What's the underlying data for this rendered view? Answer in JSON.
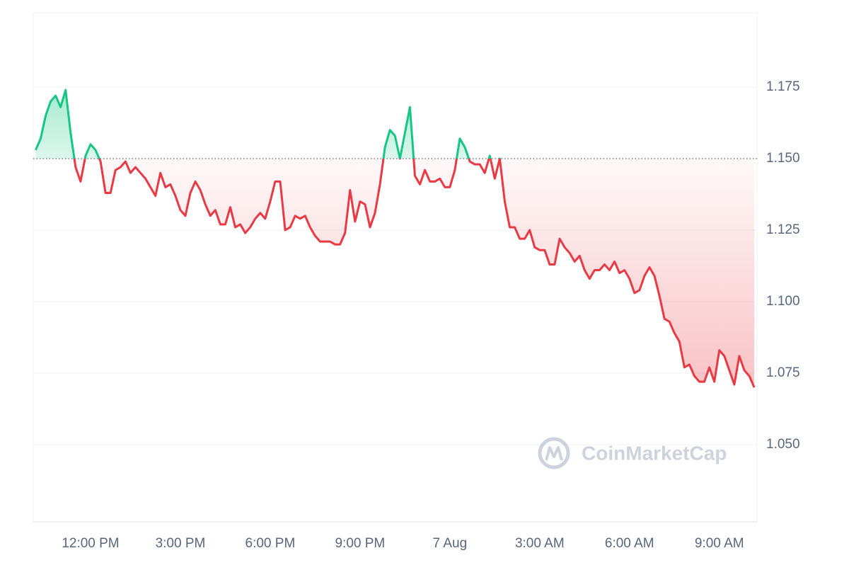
{
  "chart_data": {
    "type": "line",
    "watermark": "CoinMarketCap",
    "categories": [
      null,
      null,
      null,
      null,
      null,
      null,
      null,
      null,
      null,
      null,
      null,
      "12:00 PM",
      null,
      null,
      null,
      null,
      null,
      null,
      null,
      null,
      null,
      null,
      null,
      null,
      null,
      null,
      null,
      null,
      null,
      "3:00 PM",
      null,
      null,
      null,
      null,
      null,
      null,
      null,
      null,
      null,
      null,
      null,
      null,
      null,
      null,
      null,
      null,
      null,
      "6:00 PM",
      null,
      null,
      null,
      null,
      null,
      null,
      null,
      null,
      null,
      null,
      null,
      null,
      null,
      null,
      null,
      null,
      null,
      "9:00 PM",
      null,
      null,
      null,
      null,
      null,
      null,
      null,
      null,
      null,
      null,
      null,
      null,
      null,
      null,
      null,
      null,
      null,
      "7 Aug",
      null,
      null,
      null,
      null,
      null,
      null,
      null,
      null,
      null,
      null,
      null,
      null,
      null,
      null,
      null,
      null,
      null,
      "3:00 AM",
      null,
      null,
      null,
      null,
      null,
      null,
      null,
      null,
      null,
      null,
      null,
      null,
      null,
      null,
      null,
      null,
      null,
      "6:00 AM",
      null,
      null,
      null,
      null,
      null,
      null,
      null,
      null,
      null,
      null,
      null,
      null,
      null,
      null,
      null,
      null,
      null,
      "9:00 AM",
      null,
      null,
      null,
      null,
      null,
      null,
      null
    ],
    "values": [
      1.153,
      1.157,
      1.165,
      1.17,
      1.172,
      1.168,
      1.174,
      1.159,
      1.147,
      1.142,
      1.151,
      1.155,
      1.153,
      1.149,
      1.138,
      1.138,
      1.146,
      1.147,
      1.149,
      1.145,
      1.147,
      1.145,
      1.143,
      1.14,
      1.137,
      1.145,
      1.14,
      1.141,
      1.137,
      1.132,
      1.13,
      1.138,
      1.142,
      1.139,
      1.134,
      1.13,
      1.132,
      1.127,
      1.127,
      1.133,
      1.126,
      1.127,
      1.124,
      1.126,
      1.129,
      1.131,
      1.129,
      1.135,
      1.142,
      1.142,
      1.125,
      1.126,
      1.13,
      1.129,
      1.13,
      1.126,
      1.123,
      1.121,
      1.121,
      1.121,
      1.12,
      1.12,
      1.124,
      1.139,
      1.128,
      1.135,
      1.134,
      1.126,
      1.131,
      1.141,
      1.154,
      1.16,
      1.158,
      1.15,
      1.159,
      1.168,
      1.144,
      1.141,
      1.146,
      1.142,
      1.142,
      1.143,
      1.14,
      1.14,
      1.146,
      1.157,
      1.154,
      1.149,
      1.148,
      1.148,
      1.145,
      1.151,
      1.143,
      1.15,
      1.135,
      1.126,
      1.126,
      1.122,
      1.122,
      1.125,
      1.119,
      1.118,
      1.118,
      1.113,
      1.113,
      1.122,
      1.119,
      1.117,
      1.114,
      1.116,
      1.111,
      1.108,
      1.111,
      1.111,
      1.113,
      1.111,
      1.114,
      1.11,
      1.111,
      1.108,
      1.103,
      1.104,
      1.109,
      1.112,
      1.109,
      1.102,
      1.094,
      1.093,
      1.089,
      1.086,
      1.077,
      1.078,
      1.074,
      1.072,
      1.072,
      1.077,
      1.072,
      1.083,
      1.081,
      1.076,
      1.071,
      1.081,
      1.076,
      1.074,
      1.07
    ],
    "baseline": 1.15,
    "up_color": "#16c784",
    "down_color": "#ea3943",
    "ylim": [
      1.023,
      1.201
    ],
    "yticks": [
      {
        "value": 1.05,
        "label": "1.050"
      },
      {
        "value": 1.075,
        "label": "1.075"
      },
      {
        "value": 1.1,
        "label": "1.100"
      },
      {
        "value": 1.125,
        "label": "1.125"
      },
      {
        "value": 1.15,
        "label": "1.150"
      },
      {
        "value": 1.175,
        "label": "1.175"
      }
    ],
    "grid": true
  }
}
